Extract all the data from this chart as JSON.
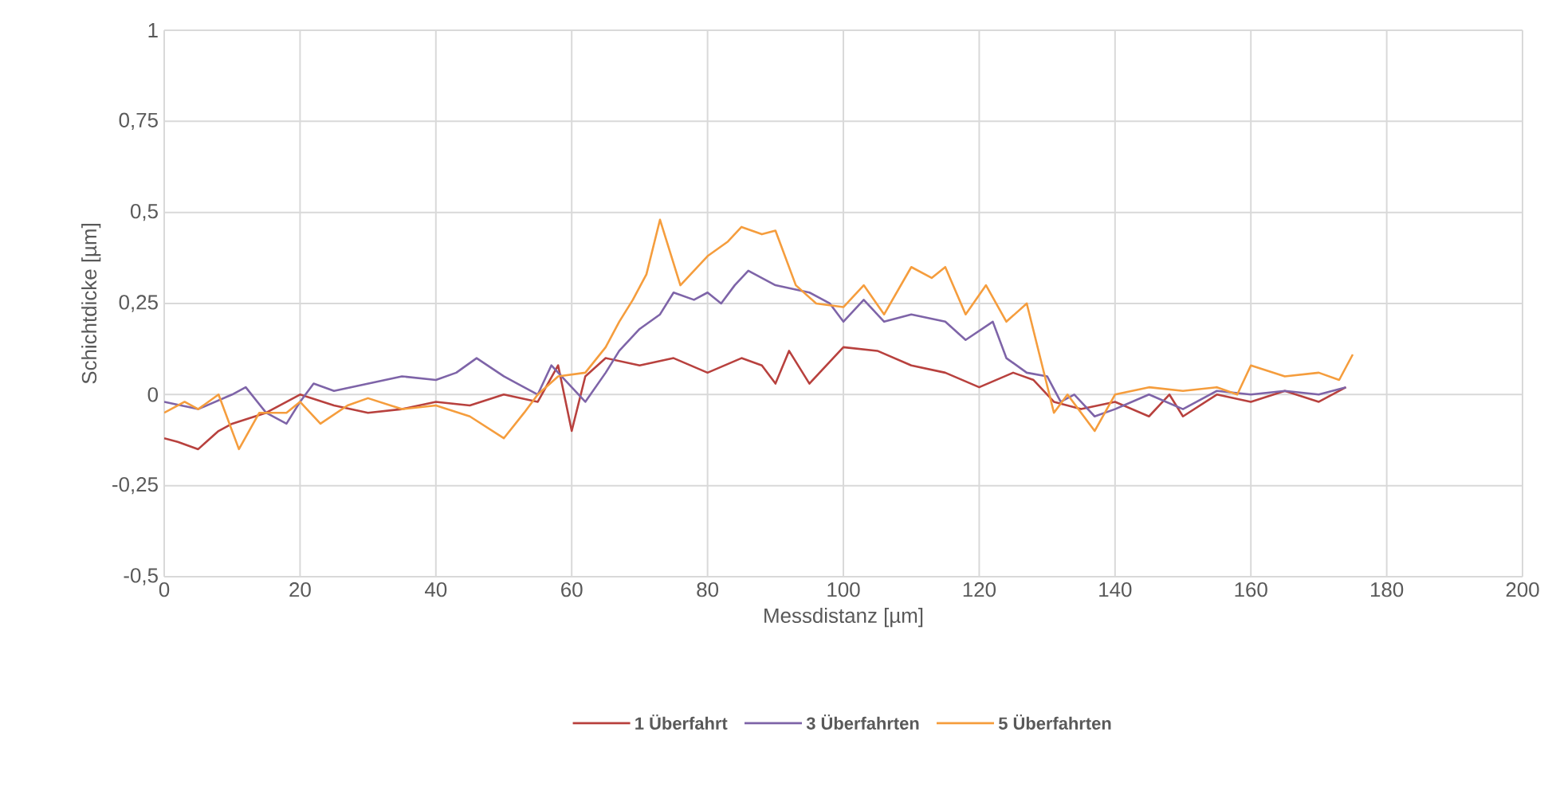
{
  "chart_data": {
    "type": "line",
    "xlabel": "Messdistanz [µm]",
    "ylabel": "Schichtdicke [µm]",
    "xlim": [
      0,
      200
    ],
    "xticks": [
      0,
      20,
      40,
      60,
      80,
      100,
      120,
      140,
      160,
      180,
      200
    ],
    "ylim": [
      -0.5,
      1
    ],
    "yticks": [
      {
        "value": -0.5,
        "label": "-0,5"
      },
      {
        "value": -0.25,
        "label": "-0,25"
      },
      {
        "value": 0,
        "label": "0"
      },
      {
        "value": 0.25,
        "label": "0,25"
      },
      {
        "value": 0.5,
        "label": "0,5"
      },
      {
        "value": 0.75,
        "label": "0,75"
      },
      {
        "value": 1,
        "label": "1"
      }
    ],
    "grid": true,
    "legend": "bottom",
    "marker": "none",
    "line_style": "solid",
    "series": [
      {
        "name": "1 Überfahrt",
        "color": "#b8413e",
        "x": [
          0,
          2,
          5,
          8,
          10,
          15,
          20,
          25,
          30,
          35,
          40,
          45,
          50,
          55,
          58,
          60,
          62,
          65,
          70,
          75,
          80,
          85,
          88,
          90,
          92,
          95,
          100,
          105,
          110,
          115,
          120,
          125,
          128,
          131,
          135,
          140,
          145,
          148,
          150,
          155,
          160,
          165,
          170,
          174
        ],
        "values": [
          -0.12,
          -0.13,
          -0.15,
          -0.1,
          -0.08,
          -0.05,
          0,
          -0.03,
          -0.05,
          -0.04,
          -0.02,
          -0.03,
          0,
          -0.02,
          0.08,
          -0.1,
          0.05,
          0.1,
          0.08,
          0.1,
          0.06,
          0.1,
          0.08,
          0.03,
          0.12,
          0.03,
          0.13,
          0.12,
          0.08,
          0.06,
          0.02,
          0.06,
          0.04,
          -0.02,
          -0.04,
          -0.02,
          -0.06,
          0,
          -0.06,
          0,
          -0.02,
          0.01,
          -0.02,
          0.02
        ]
      },
      {
        "name": "3 Überfahrten",
        "color": "#7e64a8",
        "x": [
          0,
          5,
          10,
          12,
          15,
          18,
          20,
          22,
          25,
          30,
          35,
          40,
          43,
          46,
          50,
          52,
          55,
          57,
          60,
          62,
          65,
          67,
          70,
          73,
          75,
          78,
          80,
          82,
          84,
          86,
          90,
          95,
          98,
          100,
          103,
          106,
          110,
          115,
          118,
          122,
          124,
          127,
          130,
          132,
          134,
          137,
          140,
          145,
          150,
          155,
          160,
          165,
          170,
          174
        ],
        "values": [
          -0.02,
          -0.04,
          0,
          0.02,
          -0.05,
          -0.08,
          -0.02,
          0.03,
          0.01,
          0.03,
          0.05,
          0.04,
          0.06,
          0.1,
          0.05,
          0.03,
          0,
          0.08,
          0.02,
          -0.02,
          0.06,
          0.12,
          0.18,
          0.22,
          0.28,
          0.26,
          0.28,
          0.25,
          0.3,
          0.34,
          0.3,
          0.28,
          0.25,
          0.2,
          0.26,
          0.2,
          0.22,
          0.2,
          0.15,
          0.2,
          0.1,
          0.06,
          0.05,
          -0.02,
          0,
          -0.06,
          -0.04,
          0,
          -0.04,
          0.01,
          0,
          0.01,
          0,
          0.02
        ]
      },
      {
        "name": "5 Überfahrten",
        "color": "#f59d3d",
        "x": [
          0,
          3,
          5,
          8,
          11,
          14,
          18,
          20,
          23,
          27,
          30,
          35,
          40,
          45,
          50,
          53,
          55,
          58,
          62,
          65,
          67,
          69,
          71,
          73,
          76,
          80,
          83,
          85,
          88,
          90,
          93,
          96,
          100,
          103,
          106,
          110,
          113,
          115,
          118,
          121,
          124,
          127,
          129,
          131,
          133,
          135,
          137,
          140,
          145,
          150,
          155,
          158,
          160,
          165,
          170,
          173,
          175
        ],
        "values": [
          -0.05,
          -0.02,
          -0.04,
          0,
          -0.15,
          -0.05,
          -0.05,
          -0.02,
          -0.08,
          -0.03,
          -0.01,
          -0.04,
          -0.03,
          -0.06,
          -0.12,
          -0.05,
          0,
          0.05,
          0.06,
          0.13,
          0.2,
          0.26,
          0.33,
          0.48,
          0.3,
          0.38,
          0.42,
          0.46,
          0.44,
          0.45,
          0.3,
          0.25,
          0.24,
          0.3,
          0.22,
          0.35,
          0.32,
          0.35,
          0.22,
          0.3,
          0.2,
          0.25,
          0.1,
          -0.05,
          0,
          -0.05,
          -0.1,
          0,
          0.02,
          0.01,
          0.02,
          0,
          0.08,
          0.05,
          0.06,
          0.04,
          0.11
        ]
      }
    ]
  }
}
